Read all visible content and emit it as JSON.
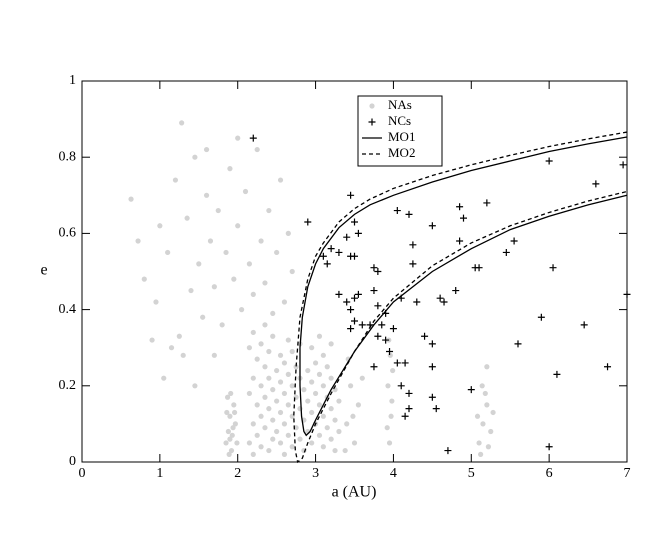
{
  "chart_data": {
    "type": "scatter",
    "xlabel": "a (AU)",
    "ylabel": "e",
    "xlim": [
      0,
      7
    ],
    "ylim": [
      0,
      1
    ],
    "xticks": [
      0,
      1,
      2,
      3,
      4,
      5,
      6,
      7
    ],
    "yticks": [
      0,
      0.2,
      0.4,
      0.6,
      0.8,
      1
    ],
    "series": [
      {
        "name": "NAs",
        "color": "#d3d3d3",
        "marker": "dot",
        "x": [
          1.85,
          1.9,
          1.88,
          1.95,
          1.92,
          1.87,
          1.97,
          1.9,
          1.94,
          1.86,
          1.99,
          1.91,
          1.89,
          1.96,
          1.93,
          2.15,
          2.15,
          2.15,
          2.2,
          2.2,
          2.2,
          2.2,
          2.25,
          2.25,
          2.25,
          2.3,
          2.3,
          2.3,
          2.3,
          2.35,
          2.35,
          2.35,
          2.35,
          2.4,
          2.4,
          2.4,
          2.4,
          2.45,
          2.45,
          2.45,
          2.45,
          2.5,
          2.5,
          2.5,
          2.55,
          2.55,
          2.55,
          2.55,
          2.6,
          2.6,
          2.6,
          2.6,
          2.65,
          2.65,
          2.65,
          2.65,
          2.7,
          2.7,
          2.7,
          2.7,
          2.75,
          2.75,
          2.75,
          2.8,
          2.8,
          2.8,
          2.8,
          2.85,
          2.85,
          2.85,
          2.9,
          2.9,
          2.9,
          2.95,
          2.95,
          2.95,
          2.95,
          3.0,
          3.0,
          3.0,
          3.05,
          3.05,
          3.05,
          3.05,
          3.1,
          3.1,
          3.1,
          3.1,
          3.15,
          3.15,
          3.15,
          3.2,
          3.2,
          3.2,
          3.2,
          3.25,
          3.25,
          3.25,
          3.3,
          3.3,
          3.4,
          3.45,
          3.5,
          3.55,
          3.42,
          3.6,
          3.48,
          3.38,
          3.95,
          3.97,
          3.93,
          3.96,
          3.98,
          3.92,
          3.99,
          3.94,
          5.1,
          5.15,
          5.2,
          5.12,
          5.25,
          5.18,
          5.22,
          5.08,
          5.28,
          5.14,
          5.2,
          0.63,
          0.8,
          0.95,
          1.0,
          1.1,
          1.2,
          1.25,
          1.28,
          1.35,
          1.4,
          1.45,
          1.5,
          1.55,
          1.6,
          1.65,
          1.7,
          1.75,
          1.8,
          1.85,
          1.9,
          1.95,
          2.0,
          2.05,
          2.1,
          2.15,
          2.2,
          2.25,
          2.3,
          2.35,
          2.4,
          2.45,
          2.5,
          2.55,
          2.6,
          2.65,
          2.7,
          1.6,
          1.3,
          1.15,
          0.72,
          1.05,
          1.7,
          2.0,
          1.45,
          0.9
        ],
        "values": [
          0.05,
          0.12,
          0.08,
          0.15,
          0.03,
          0.17,
          0.1,
          0.06,
          0.09,
          0.13,
          0.05,
          0.18,
          0.02,
          0.13,
          0.07,
          0.05,
          0.18,
          0.3,
          0.1,
          0.22,
          0.02,
          0.34,
          0.07,
          0.15,
          0.27,
          0.04,
          0.12,
          0.2,
          0.31,
          0.09,
          0.17,
          0.25,
          0.36,
          0.03,
          0.14,
          0.22,
          0.29,
          0.06,
          0.11,
          0.19,
          0.33,
          0.08,
          0.16,
          0.24,
          0.05,
          0.13,
          0.21,
          0.28,
          0.1,
          0.18,
          0.26,
          0.02,
          0.07,
          0.15,
          0.23,
          0.32,
          0.04,
          0.12,
          0.2,
          0.29,
          0.09,
          0.17,
          0.25,
          0.06,
          0.14,
          0.22,
          0.31,
          0.03,
          0.11,
          0.19,
          0.08,
          0.16,
          0.24,
          0.05,
          0.13,
          0.21,
          0.3,
          0.1,
          0.18,
          0.26,
          0.07,
          0.15,
          0.23,
          0.33,
          0.04,
          0.12,
          0.2,
          0.28,
          0.09,
          0.17,
          0.25,
          0.06,
          0.14,
          0.22,
          0.31,
          0.03,
          0.11,
          0.19,
          0.08,
          0.16,
          0.1,
          0.2,
          0.05,
          0.15,
          0.27,
          0.22,
          0.12,
          0.03,
          0.05,
          0.12,
          0.2,
          0.28,
          0.16,
          0.09,
          0.24,
          0.32,
          0.05,
          0.1,
          0.15,
          0.02,
          0.08,
          0.18,
          0.04,
          0.12,
          0.13,
          0.2,
          0.25,
          0.69,
          0.48,
          0.42,
          0.62,
          0.55,
          0.74,
          0.33,
          0.89,
          0.64,
          0.45,
          0.8,
          0.52,
          0.38,
          0.7,
          0.58,
          0.46,
          0.66,
          0.36,
          0.55,
          0.77,
          0.48,
          0.62,
          0.4,
          0.71,
          0.52,
          0.44,
          0.82,
          0.58,
          0.47,
          0.66,
          0.39,
          0.55,
          0.74,
          0.42,
          0.6,
          0.5,
          0.82,
          0.28,
          0.3,
          0.58,
          0.22,
          0.28,
          0.85,
          0.2,
          0.32
        ]
      },
      {
        "name": "NCs",
        "color": "#000000",
        "marker": "plus",
        "x": [
          2.2,
          2.9,
          3.1,
          3.15,
          3.2,
          3.3,
          3.4,
          3.45,
          3.5,
          3.45,
          3.5,
          3.55,
          3.3,
          3.4,
          3.45,
          3.5,
          3.55,
          3.6,
          3.5,
          3.45,
          3.7,
          3.75,
          3.8,
          3.75,
          3.8,
          3.85,
          3.9,
          3.8,
          3.9,
          3.75,
          3.95,
          4.0,
          4.1,
          4.05,
          4.2,
          4.25,
          4.25,
          4.3,
          4.15,
          4.1,
          4.2,
          4.2,
          4.15,
          4.05,
          4.4,
          4.5,
          4.5,
          4.5,
          4.6,
          4.65,
          4.5,
          4.55,
          4.7,
          4.8,
          4.85,
          4.85,
          4.9,
          5.1,
          5.05,
          5.2,
          5.0,
          5.45,
          5.55,
          5.6,
          6.0,
          6.05,
          6.1,
          5.9,
          6.45,
          6.6,
          6.75,
          6.95,
          7.0,
          6.0
        ],
        "values": [
          0.85,
          0.63,
          0.54,
          0.52,
          0.56,
          0.55,
          0.59,
          0.7,
          0.63,
          0.54,
          0.54,
          0.6,
          0.44,
          0.42,
          0.4,
          0.43,
          0.44,
          0.36,
          0.37,
          0.35,
          0.36,
          0.51,
          0.5,
          0.45,
          0.41,
          0.36,
          0.39,
          0.33,
          0.32,
          0.25,
          0.29,
          0.35,
          0.43,
          0.66,
          0.65,
          0.57,
          0.52,
          0.42,
          0.26,
          0.2,
          0.18,
          0.14,
          0.12,
          0.26,
          0.33,
          0.31,
          0.25,
          0.62,
          0.43,
          0.42,
          0.17,
          0.14,
          0.03,
          0.45,
          0.58,
          0.67,
          0.64,
          0.51,
          0.51,
          0.68,
          0.19,
          0.55,
          0.58,
          0.31,
          0.79,
          0.51,
          0.23,
          0.38,
          0.36,
          0.73,
          0.25,
          0.78,
          0.44,
          0.04
        ]
      },
      {
        "name": "MO1",
        "color": "#000000",
        "marker": "line",
        "style": "solid",
        "x": [
          7,
          6.5,
          6,
          5.5,
          5,
          4.5,
          4,
          3.7,
          3.5,
          3.3,
          3.1,
          3,
          2.9,
          2.83,
          2.8,
          2.8,
          2.82,
          2.85,
          2.88,
          2.93,
          3,
          3.1,
          3.2,
          3.35,
          3.5,
          3.75,
          4,
          4.5,
          5,
          5.5,
          6,
          6.5,
          7
        ],
        "values": [
          0.853,
          0.835,
          0.815,
          0.79,
          0.765,
          0.735,
          0.7,
          0.675,
          0.65,
          0.615,
          0.56,
          0.52,
          0.46,
          0.38,
          0.3,
          0.2,
          0.12,
          0.08,
          0.07,
          0.08,
          0.11,
          0.15,
          0.19,
          0.24,
          0.29,
          0.36,
          0.42,
          0.5,
          0.56,
          0.61,
          0.645,
          0.675,
          0.7
        ]
      },
      {
        "name": "MO2",
        "color": "#000000",
        "marker": "line",
        "style": "dashed",
        "x": [
          7,
          6.5,
          6,
          5.5,
          5,
          4.5,
          4,
          3.7,
          3.5,
          3.3,
          3.1,
          3,
          2.9,
          2.8,
          2.75,
          2.72,
          2.74,
          2.77,
          2.83,
          2.9,
          3,
          3.2,
          3.5,
          3.75,
          4,
          4.5,
          5,
          5.5,
          6,
          6.5,
          7
        ],
        "values": [
          0.866,
          0.848,
          0.828,
          0.805,
          0.78,
          0.752,
          0.718,
          0.69,
          0.665,
          0.63,
          0.575,
          0.54,
          0.48,
          0.38,
          0.25,
          0.12,
          0.03,
          0,
          0.01,
          0.05,
          0.1,
          0.18,
          0.29,
          0.37,
          0.43,
          0.515,
          0.575,
          0.62,
          0.655,
          0.685,
          0.71
        ]
      }
    ]
  }
}
